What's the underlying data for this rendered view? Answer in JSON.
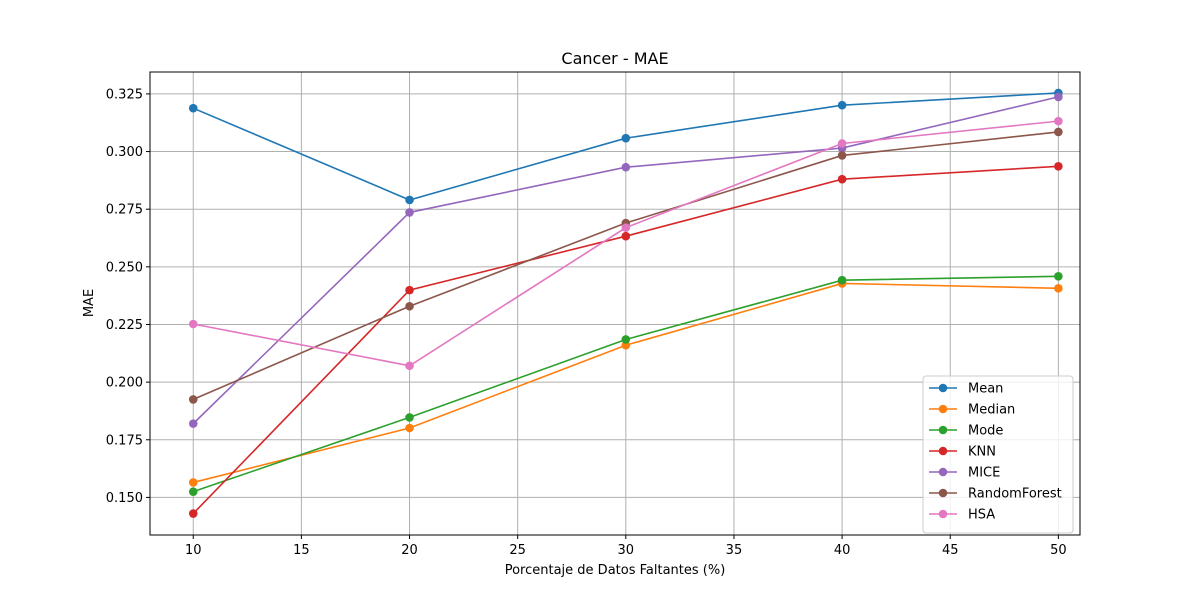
{
  "chart_data": {
    "type": "line",
    "title": "Cancer - MAE",
    "xlabel": "Porcentaje de Datos Faltantes (%)",
    "ylabel": "MAE",
    "x": [
      10,
      20,
      30,
      40,
      50
    ],
    "xlim": [
      8,
      51
    ],
    "ylim": [
      0.1337,
      0.3345
    ],
    "xticks": [
      10,
      15,
      20,
      25,
      30,
      35,
      40,
      45,
      50
    ],
    "yticks": [
      0.15,
      0.175,
      0.2,
      0.225,
      0.25,
      0.275,
      0.3,
      0.325
    ],
    "ytick_labels": [
      "0.150",
      "0.175",
      "0.200",
      "0.225",
      "0.250",
      "0.275",
      "0.300",
      "0.325"
    ],
    "grid": true,
    "legend_position": "lower-right",
    "series": [
      {
        "name": "Mean",
        "color": "#1f77b4",
        "values": [
          0.3188,
          0.279,
          0.3058,
          0.3201,
          0.3254
        ]
      },
      {
        "name": "Median",
        "color": "#ff7f0e",
        "values": [
          0.1565,
          0.1801,
          0.216,
          0.2428,
          0.2407
        ]
      },
      {
        "name": "Mode",
        "color": "#2ca02c",
        "values": [
          0.1525,
          0.1847,
          0.2185,
          0.2442,
          0.2459
        ]
      },
      {
        "name": "KNN",
        "color": "#d62728",
        "values": [
          0.143,
          0.2399,
          0.2633,
          0.288,
          0.2936
        ]
      },
      {
        "name": "MICE",
        "color": "#9467bd",
        "values": [
          0.182,
          0.2736,
          0.2932,
          0.3015,
          0.3237
        ]
      },
      {
        "name": "RandomForest",
        "color": "#8c564b",
        "values": [
          0.1925,
          0.2329,
          0.269,
          0.2983,
          0.3085
        ]
      },
      {
        "name": "HSA",
        "color": "#e377c2",
        "values": [
          0.2252,
          0.2071,
          0.267,
          0.3035,
          0.3132
        ]
      }
    ]
  }
}
